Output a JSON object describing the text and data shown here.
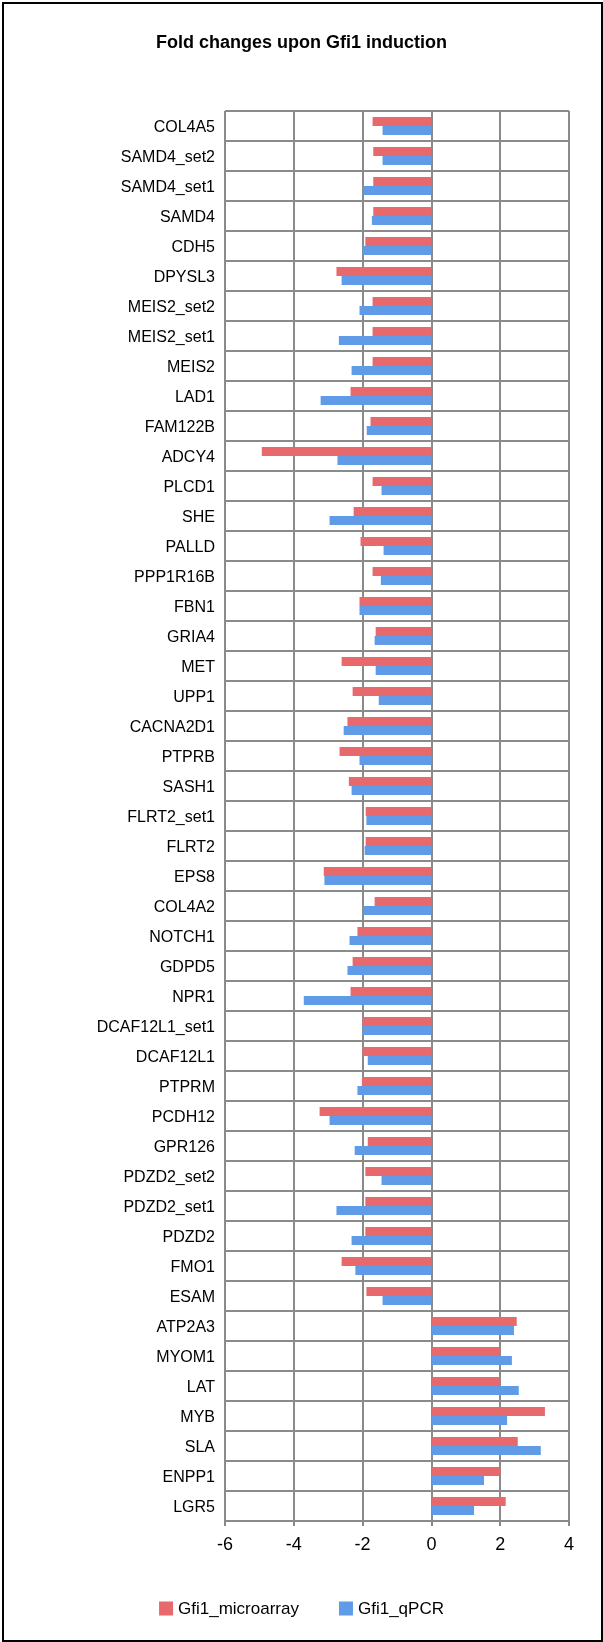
{
  "chart_data": {
    "type": "bar",
    "title": "Fold changes upon Gfi1 induction",
    "orientation": "horizontal",
    "categories": [
      "COL4A5",
      "SAMD4_set2",
      "SAMD4_set1",
      "SAMD4",
      "CDH5",
      "DPYSL3",
      "MEIS2_set2",
      "MEIS2_set1",
      "MEIS2",
      "LAD1",
      "FAM122B",
      "ADCY4",
      "PLCD1",
      "SHE",
      "PALLD",
      "PPP1R16B",
      "FBN1",
      "GRIA4",
      "MET",
      "UPP1",
      "CACNA2D1",
      "PTPRB",
      "SASH1",
      "FLRT2_set1",
      "FLRT2",
      "EPS8",
      "COL4A2",
      "NOTCH1",
      "GDPD5",
      "NPR1",
      "DCAF12L1_set1",
      "DCAF12L1",
      "PTPRM",
      "PCDH12",
      "GPR126",
      "PDZD2_set2",
      "PDZD2_set1",
      "PDZD2",
      "FMO1",
      "ESAM",
      "ATP2A3",
      "MYOM1",
      "LAT",
      "MYB",
      "SLA",
      "ENPP1",
      "LGR5"
    ],
    "series": [
      {
        "name": "Gfi1_microarray",
        "color": "#e8696b",
        "values": [
          -1.71,
          -1.69,
          -1.69,
          -1.69,
          -1.92,
          -2.76,
          -1.71,
          -1.71,
          -1.71,
          -2.35,
          -1.77,
          -4.93,
          -1.71,
          -2.26,
          -2.06,
          -1.71,
          -2.09,
          -1.62,
          -2.61,
          -2.29,
          -2.44,
          -2.67,
          -2.4,
          -1.91,
          -1.91,
          -3.13,
          -1.65,
          -2.15,
          -2.29,
          -2.35,
          -2.0,
          -2.0,
          -2.02,
          -3.25,
          -1.85,
          -1.92,
          -1.92,
          -1.92,
          -2.61,
          -1.89,
          2.48,
          2.0,
          2.0,
          3.3,
          2.51,
          2.0,
          2.16
        ]
      },
      {
        "name": "Gfi1_qPCR",
        "color": "#5f9be6",
        "values": [
          -1.42,
          -1.42,
          -1.98,
          -1.73,
          -2.0,
          -2.61,
          -2.09,
          -2.69,
          -2.32,
          -3.22,
          -1.88,
          -2.73,
          -1.45,
          -2.96,
          -1.39,
          -1.47,
          -2.09,
          -1.65,
          -1.62,
          -1.53,
          -2.55,
          -2.09,
          -2.32,
          -1.89,
          -1.94,
          -3.11,
          -1.98,
          -2.38,
          -2.44,
          -3.71,
          -2.0,
          -1.85,
          -2.15,
          -2.96,
          -2.23,
          -1.45,
          -2.76,
          -2.32,
          -2.21,
          -1.42,
          2.4,
          2.34,
          2.54,
          2.2,
          3.18,
          1.53,
          1.24
        ]
      }
    ],
    "xlim": [
      -6,
      4
    ],
    "xticks": [
      -6,
      -4,
      -2,
      0,
      2,
      4
    ],
    "grid": true,
    "legend": "bottom"
  }
}
